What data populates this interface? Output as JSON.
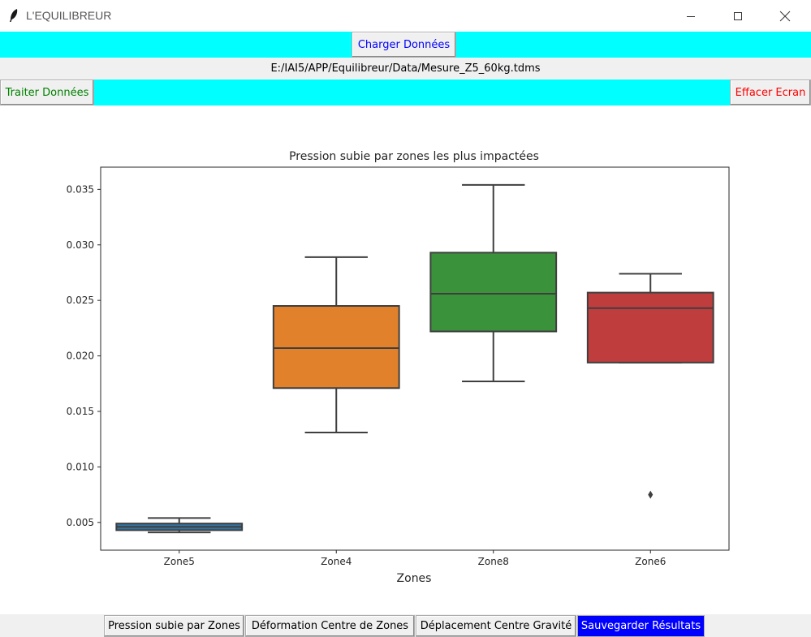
{
  "window": {
    "title": "L'EQUILIBREUR",
    "app_icon": "feather-icon"
  },
  "toolbar": {
    "load_label": "Charger Données",
    "file_path": "E:/IAI5/APP/Equilibreur/Data/Mesure_Z5_60kg.tdms",
    "process_label": "Traiter Données",
    "clear_label": "Effacer Ecran"
  },
  "colors": {
    "bar_bg": "#00ffff",
    "load_text": "#0000ff",
    "process_text": "#008000",
    "clear_text": "#ff0000",
    "active_tab_bg": "#0000ff",
    "active_tab_text": "#ffffff"
  },
  "tabs": [
    {
      "label": "Pression subie par Zones"
    },
    {
      "label": "Déformation Centre de Zones"
    },
    {
      "label": "Déplacement Centre Gravité"
    },
    {
      "label": "Sauvegarder Résultats"
    }
  ],
  "chart_data": {
    "type": "box",
    "title": "Pression subie par zones les plus impactées",
    "xlabel": "Zones",
    "ylabel": "",
    "ylim": [
      0.0025,
      0.037
    ],
    "yticks": [
      0.005,
      0.01,
      0.015,
      0.02,
      0.025,
      0.03,
      0.035
    ],
    "ytick_labels": [
      "0.005",
      "0.010",
      "0.015",
      "0.020",
      "0.025",
      "0.030",
      "0.035"
    ],
    "categories": [
      "Zone5",
      "Zone4",
      "Zone8",
      "Zone6"
    ],
    "boxes": [
      {
        "category": "Zone5",
        "whislo": 0.0041,
        "q1": 0.0043,
        "med": 0.0046,
        "q3": 0.0049,
        "whishi": 0.0054,
        "fliers": [],
        "color": "#3274a1"
      },
      {
        "category": "Zone4",
        "whislo": 0.0131,
        "q1": 0.0171,
        "med": 0.0207,
        "q3": 0.0245,
        "whishi": 0.0289,
        "fliers": [],
        "color": "#e1812c"
      },
      {
        "category": "Zone8",
        "whislo": 0.0177,
        "q1": 0.0222,
        "med": 0.0256,
        "q3": 0.0293,
        "whishi": 0.0354,
        "fliers": [],
        "color": "#3a923a"
      },
      {
        "category": "Zone6",
        "whislo": 0.0194,
        "q1": 0.0194,
        "med": 0.0243,
        "q3": 0.0257,
        "whishi": 0.0274,
        "fliers": [
          0.0075
        ],
        "color": "#c03d3e"
      }
    ],
    "grid": false,
    "legend": "none"
  }
}
